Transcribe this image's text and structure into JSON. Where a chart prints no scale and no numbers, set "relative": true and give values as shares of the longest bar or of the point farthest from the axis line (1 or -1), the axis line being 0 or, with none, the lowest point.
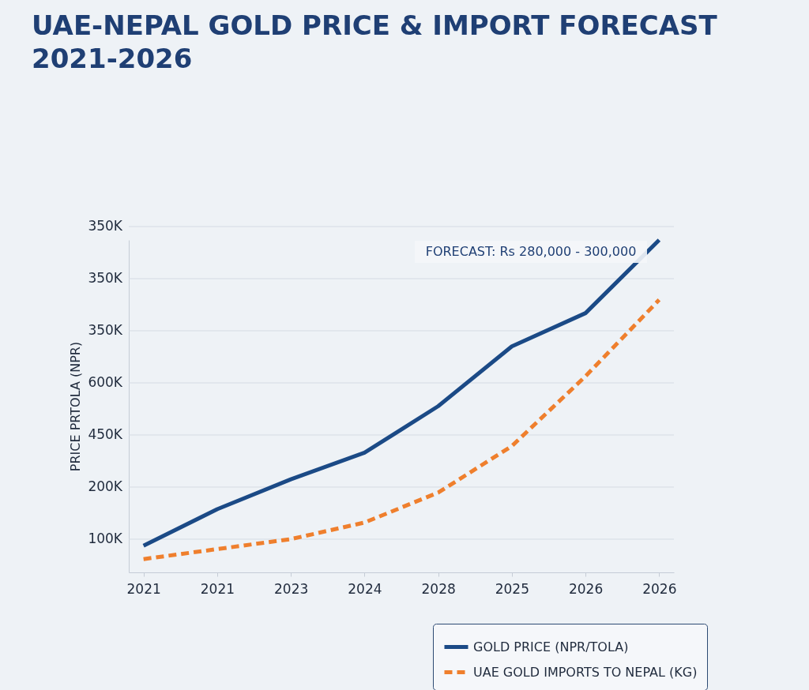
{
  "chart_data": {
    "type": "line",
    "title": "UAE-NEPAL GOLD PRICE & IMPORT FORECAST 2021-2026",
    "ylabel": "PRICE PRTOLA (NPR)",
    "annotations": [
      "FORECAST: Rs 280,000 - 300,000",
      "350K",
      "350K",
      "350K",
      "600K",
      "450K",
      "200K",
      "100K"
    ],
    "categories": [
      "2021",
      "2021",
      "2023",
      "2024",
      "2028",
      "2025",
      "2026",
      "2026"
    ],
    "relative": true,
    "grid": "y",
    "legend": "bottom right",
    "series": [
      {
        "name": "GOLD PRICE (NPR/TOLA)",
        "color": "#1b4a86",
        "line_style": "solid",
        "values": [
          0.08,
          0.19,
          0.28,
          0.36,
          0.5,
          0.68,
          0.78,
          1.0
        ]
      },
      {
        "name": "UAE GOLD IMPORTS TO NEPAL (KG)",
        "color": "#ef7f2d",
        "line_style": "dashed",
        "values": [
          0.04,
          0.07,
          0.1,
          0.15,
          0.24,
          0.38,
          0.59,
          0.82
        ]
      }
    ]
  }
}
